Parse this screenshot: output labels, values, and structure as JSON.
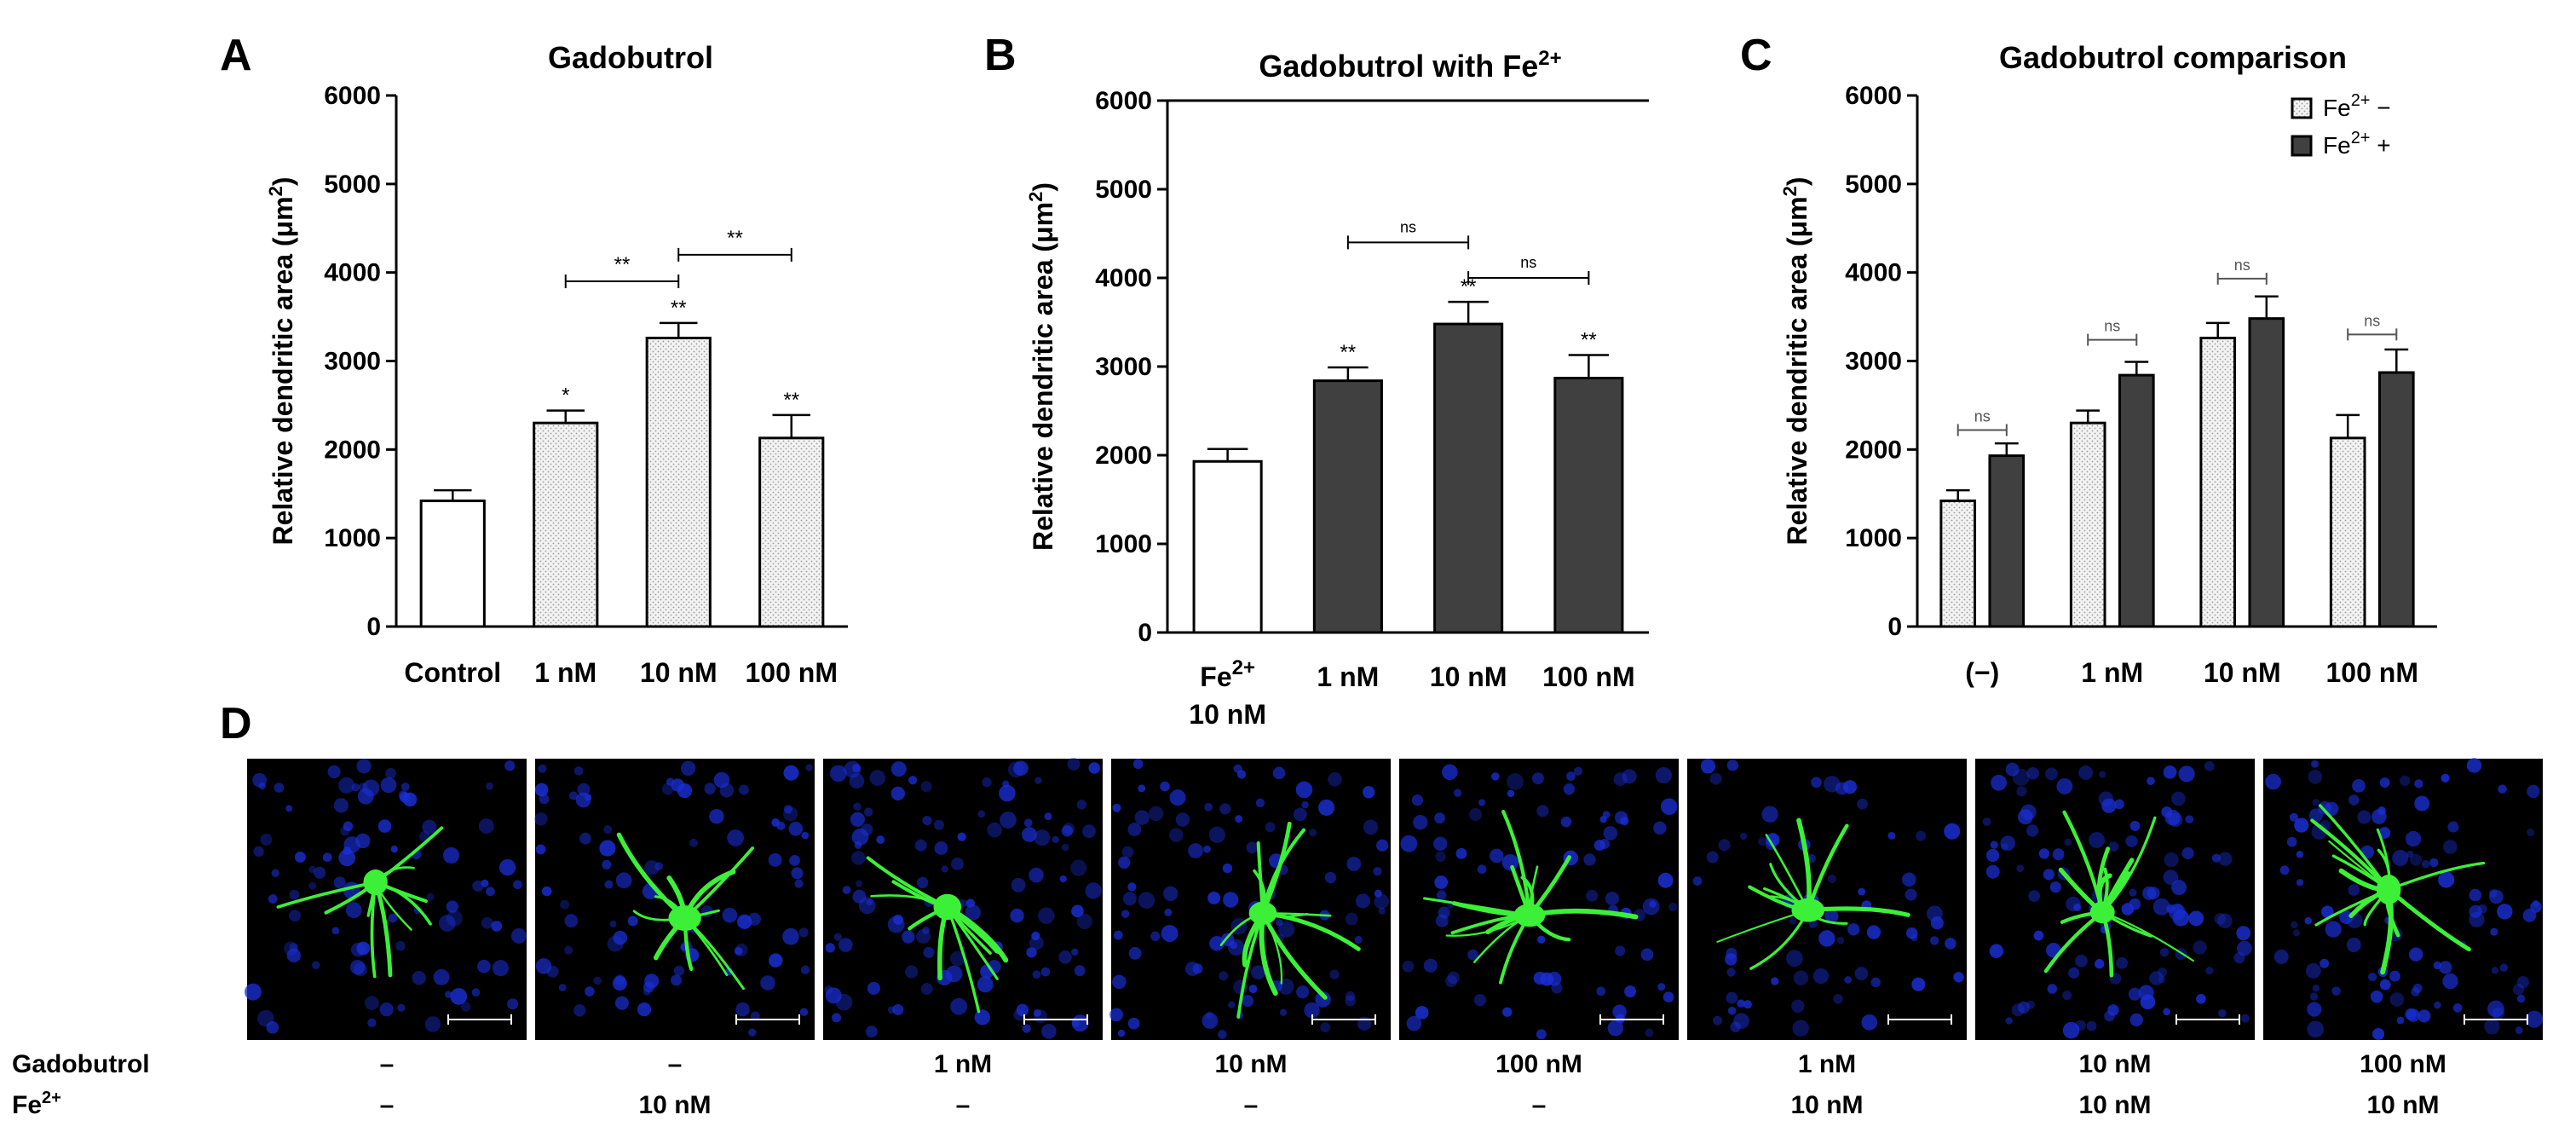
{
  "figure": {
    "panel_letters": [
      "A",
      "B",
      "C",
      "D"
    ]
  },
  "colors": {
    "control_bar": "#ffffff",
    "gadobutrol_bar_dotted": "#e6e6e6",
    "fe_bar_dark": "#404040",
    "axis": "#000000",
    "micrograph_bg": "#000000",
    "nuclei_stain": "#1a2fd6",
    "neuron_stain": "#3cf038"
  },
  "chart_data": [
    {
      "type": "bar",
      "panel": "A",
      "title": "Gadobutrol",
      "ylabel": "Relative dendritic area",
      "ylabel_unit": "(μm",
      "ylabel_sup": "2",
      "ylabel_close": ")",
      "ylim": [
        0,
        6000
      ],
      "yticks": [
        0,
        1000,
        2000,
        3000,
        4000,
        5000,
        6000
      ],
      "categories": [
        "Control",
        "1 nM",
        "10 nM",
        "100 nM"
      ],
      "values": [
        1420,
        2300,
        3260,
        2130
      ],
      "errors": [
        120,
        140,
        170,
        260
      ],
      "fills": [
        "control",
        "dotted",
        "dotted",
        "dotted"
      ],
      "bar_annotations": [
        "",
        "*",
        "**",
        "**"
      ],
      "brackets": [
        {
          "from": 1,
          "to": 2,
          "y": 3900,
          "label": "**"
        },
        {
          "from": 2,
          "to": 3,
          "y": 4200,
          "label": "**"
        }
      ]
    },
    {
      "type": "bar",
      "panel": "B",
      "title": "Gadobutrol with Fe",
      "title_sup": "2+",
      "ylabel": "Relative dendritic area",
      "ylabel_unit": "(μm",
      "ylabel_sup": "2",
      "ylabel_close": ")",
      "ylim": [
        0,
        6000
      ],
      "yticks": [
        0,
        1000,
        2000,
        3000,
        4000,
        5000,
        6000
      ],
      "categories": [
        "Fe",
        "1 nM",
        "10 nM",
        "100 nM"
      ],
      "category_sup": [
        "2+",
        "",
        "",
        ""
      ],
      "category_line2": [
        "10 nM",
        "",
        "",
        ""
      ],
      "values": [
        1930,
        2840,
        3480,
        2870
      ],
      "errors": [
        140,
        150,
        250,
        260
      ],
      "fills": [
        "control",
        "dark",
        "dark",
        "dark"
      ],
      "bar_annotations": [
        "",
        "**",
        "**",
        "**"
      ],
      "brackets": [
        {
          "from": 1,
          "to": 2,
          "y": 4400,
          "label": "ns"
        },
        {
          "from": 2,
          "to": 3,
          "y": 4000,
          "label": "ns"
        }
      ]
    },
    {
      "type": "bar",
      "panel": "C",
      "title": "Gadobutrol comparison",
      "ylabel": "Relative dendritic area",
      "ylabel_unit": "(μm",
      "ylabel_sup": "2",
      "ylabel_close": ")",
      "ylim": [
        0,
        6000
      ],
      "yticks": [
        0,
        1000,
        2000,
        3000,
        4000,
        5000,
        6000
      ],
      "categories": [
        "(−)",
        "1 nM",
        "10 nM",
        "100 nM"
      ],
      "series": [
        {
          "name": "Fe",
          "sup": "2+",
          "suffix": " −",
          "values": [
            1420,
            2300,
            3260,
            2130
          ],
          "errors": [
            120,
            140,
            170,
            260
          ],
          "fill": "dotted"
        },
        {
          "name": "Fe",
          "sup": "2+",
          "suffix": " +",
          "values": [
            1930,
            2840,
            3480,
            2870
          ],
          "errors": [
            140,
            150,
            250,
            260
          ],
          "fill": "dark"
        }
      ],
      "brackets": [
        {
          "group": 0,
          "y": 2220,
          "label": "ns"
        },
        {
          "group": 1,
          "y": 3240,
          "label": "ns"
        },
        {
          "group": 2,
          "y": 3930,
          "label": "ns"
        },
        {
          "group": 3,
          "y": 3300,
          "label": "ns"
        }
      ],
      "legend_position": "top-right"
    }
  ],
  "panel_d": {
    "row_labels": {
      "gadobutrol": "Gadobutrol",
      "fe": "Fe",
      "fe_sup": "2+"
    },
    "conditions": [
      {
        "gadobutrol": "–",
        "fe": "–"
      },
      {
        "gadobutrol": "–",
        "fe": "10 nM"
      },
      {
        "gadobutrol": "1 nM",
        "fe": "–"
      },
      {
        "gadobutrol": "10 nM",
        "fe": "–"
      },
      {
        "gadobutrol": "100 nM",
        "fe": "–"
      },
      {
        "gadobutrol": "1 nM",
        "fe": "10 nM"
      },
      {
        "gadobutrol": "10 nM",
        "fe": "10 nM"
      },
      {
        "gadobutrol": "100 nM",
        "fe": "10 nM"
      }
    ],
    "image_descriptions": [
      "confocal-neuron-image"
    ]
  }
}
